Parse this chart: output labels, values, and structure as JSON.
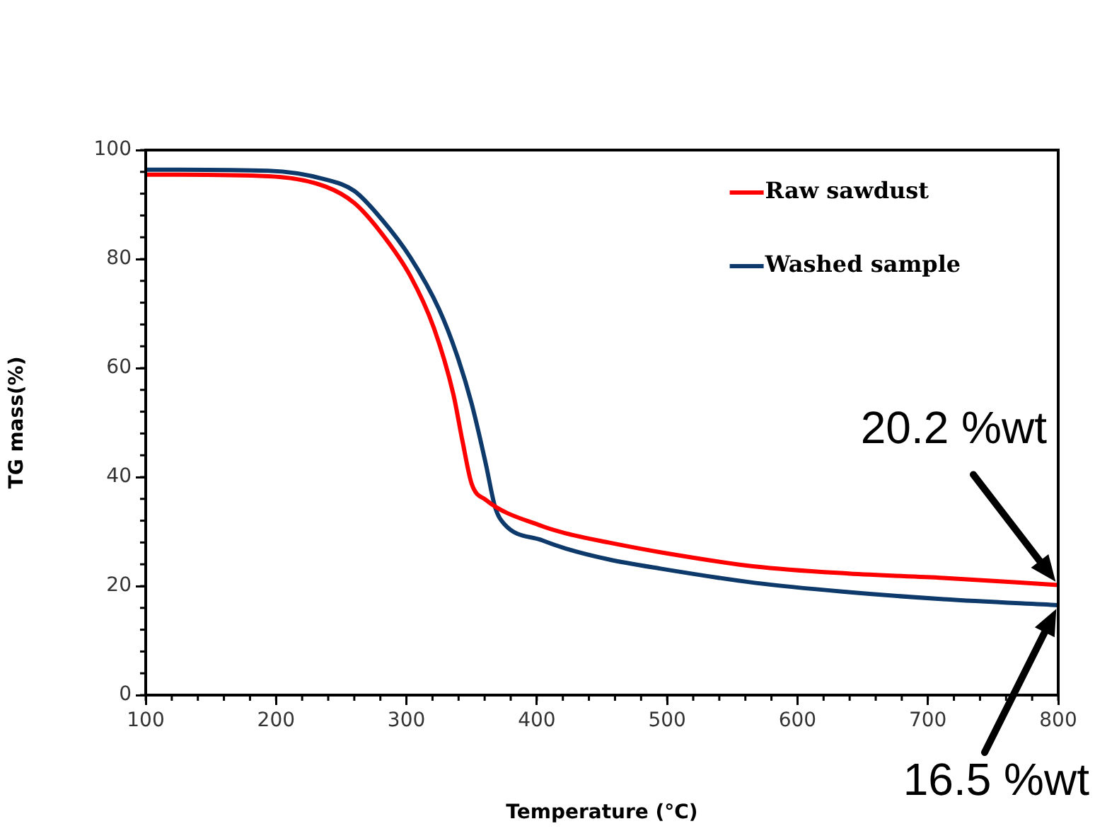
{
  "chart_data": {
    "type": "line",
    "xlabel": "Temperature (°C)",
    "ylabel": "TG mass(%)",
    "xlim": [
      100,
      800
    ],
    "xticks": [
      100,
      200,
      300,
      400,
      500,
      600,
      700,
      800
    ],
    "ylim": [
      0,
      100
    ],
    "yticks": [
      0,
      20,
      40,
      60,
      80,
      100
    ],
    "grid": false,
    "legend": "top right",
    "marker": "none",
    "line_style": "solid",
    "series": [
      {
        "name": "Raw sawdust",
        "color": "#ff0000",
        "x": [
          100,
          194,
          238,
          260,
          281,
          303,
          321,
          336,
          343,
          350,
          361,
          404,
          422,
          455,
          495,
          567,
          639,
          712,
          800
        ],
        "values": [
          95.5,
          95.2,
          93.3,
          90.3,
          84.7,
          76.9,
          67.4,
          55.2,
          46.6,
          38.8,
          35.8,
          31.0,
          29.7,
          28.0,
          26.2,
          23.6,
          22.3,
          21.5,
          20.2
        ]
      },
      {
        "name": "Washed sample",
        "color": "#0d3a6b",
        "x": [
          100,
          194,
          238,
          260,
          281,
          303,
          325,
          339,
          350,
          361,
          368,
          375,
          404,
          422,
          455,
          495,
          567,
          639,
          712,
          800
        ],
        "values": [
          96.4,
          96.2,
          94.6,
          92.5,
          87.3,
          80.3,
          70.8,
          62.2,
          53.5,
          42.3,
          34.5,
          31.4,
          28.4,
          26.9,
          24.9,
          23.2,
          20.6,
          18.9,
          17.6,
          16.5
        ]
      }
    ],
    "annotations": [
      "20.2 %wt",
      "16.5 %wt"
    ]
  }
}
